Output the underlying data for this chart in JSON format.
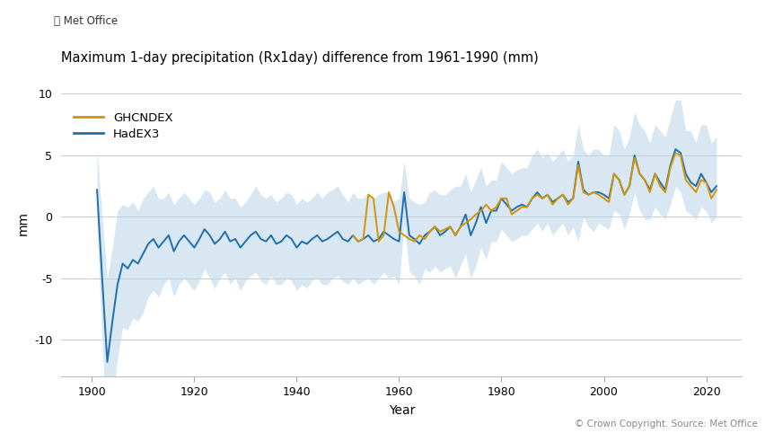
{
  "title": "Maximum 1-day precipitation (Rx1day) difference from 1961-1990 (mm)",
  "ylabel": "mm",
  "xlabel": "Year",
  "copyright": "© Crown Copyright. Source: Met Office",
  "metoffice_logo": "⦻ Met Office",
  "legend": [
    "GHCNDEX",
    "HadEX3"
  ],
  "hadex3_color": "#1f6fad",
  "ghcndex_color": "#d4940a",
  "shade_color": "#b8d4e8",
  "ylim": [
    -13,
    12
  ],
  "xlim": [
    1894,
    2027
  ],
  "yticks": [
    -10,
    -5,
    0,
    5,
    10
  ],
  "xticks": [
    1900,
    1920,
    1940,
    1960,
    1980,
    2000,
    2020
  ],
  "hadex3_years": [
    1901,
    1902,
    1903,
    1904,
    1905,
    1906,
    1907,
    1908,
    1909,
    1910,
    1911,
    1912,
    1913,
    1914,
    1915,
    1916,
    1917,
    1918,
    1919,
    1920,
    1921,
    1922,
    1923,
    1924,
    1925,
    1926,
    1927,
    1928,
    1929,
    1930,
    1931,
    1932,
    1933,
    1934,
    1935,
    1936,
    1937,
    1938,
    1939,
    1940,
    1941,
    1942,
    1943,
    1944,
    1945,
    1946,
    1947,
    1948,
    1949,
    1950,
    1951,
    1952,
    1953,
    1954,
    1955,
    1956,
    1957,
    1958,
    1959,
    1960,
    1961,
    1962,
    1963,
    1964,
    1965,
    1966,
    1967,
    1968,
    1969,
    1970,
    1971,
    1972,
    1973,
    1974,
    1975,
    1976,
    1977,
    1978,
    1979,
    1980,
    1981,
    1982,
    1983,
    1984,
    1985,
    1986,
    1987,
    1988,
    1989,
    1990,
    1991,
    1992,
    1993,
    1994,
    1995,
    1996,
    1997,
    1998,
    1999,
    2000,
    2001,
    2002,
    2003,
    2004,
    2005,
    2006,
    2007,
    2008,
    2009,
    2010,
    2011,
    2012,
    2013,
    2014,
    2015,
    2016,
    2017,
    2018,
    2019,
    2020,
    2021,
    2022
  ],
  "hadex3_values": [
    2.2,
    -5.0,
    -11.8,
    -8.5,
    -5.5,
    -3.8,
    -4.2,
    -3.5,
    -3.8,
    -3.0,
    -2.2,
    -1.8,
    -2.5,
    -2.0,
    -1.5,
    -2.8,
    -2.0,
    -1.5,
    -2.0,
    -2.5,
    -1.8,
    -1.0,
    -1.5,
    -2.2,
    -1.8,
    -1.2,
    -2.0,
    -1.8,
    -2.5,
    -2.0,
    -1.5,
    -1.2,
    -1.8,
    -2.0,
    -1.5,
    -2.2,
    -2.0,
    -1.5,
    -1.8,
    -2.5,
    -2.0,
    -2.2,
    -1.8,
    -1.5,
    -2.0,
    -1.8,
    -1.5,
    -1.2,
    -1.8,
    -2.0,
    -1.5,
    -2.0,
    -1.8,
    -1.5,
    -2.0,
    -1.8,
    -1.2,
    -1.5,
    -1.8,
    -2.0,
    2.0,
    -1.5,
    -1.8,
    -2.2,
    -1.5,
    -1.2,
    -0.8,
    -1.5,
    -1.2,
    -0.8,
    -1.5,
    -0.8,
    0.2,
    -1.5,
    -0.5,
    0.8,
    -0.5,
    0.5,
    0.5,
    1.5,
    1.0,
    0.5,
    0.8,
    1.0,
    0.8,
    1.5,
    2.0,
    1.5,
    1.8,
    1.2,
    1.5,
    1.8,
    1.2,
    1.5,
    4.5,
    2.2,
    1.8,
    2.0,
    2.0,
    1.8,
    1.5,
    3.5,
    3.0,
    1.8,
    2.5,
    5.0,
    3.5,
    3.0,
    2.2,
    3.5,
    2.8,
    2.2,
    4.2,
    5.5,
    5.2,
    3.5,
    2.8,
    2.5,
    3.5,
    2.8,
    2.0,
    2.5
  ],
  "hadex3_upper": [
    5.5,
    0.0,
    -5.0,
    -2.5,
    0.5,
    1.0,
    0.8,
    1.2,
    0.5,
    1.5,
    2.0,
    2.5,
    1.5,
    1.5,
    2.0,
    1.0,
    1.5,
    2.0,
    1.5,
    1.0,
    1.5,
    2.2,
    2.0,
    1.2,
    1.5,
    2.2,
    1.5,
    1.5,
    0.8,
    1.2,
    1.8,
    2.5,
    1.8,
    1.5,
    1.8,
    1.2,
    1.5,
    2.0,
    1.8,
    1.0,
    1.5,
    1.2,
    1.5,
    2.0,
    1.5,
    2.0,
    2.2,
    2.5,
    1.8,
    1.2,
    2.0,
    1.5,
    1.5,
    2.0,
    1.5,
    1.8,
    2.0,
    2.0,
    1.2,
    1.5,
    4.5,
    1.5,
    1.2,
    1.0,
    1.2,
    2.0,
    2.2,
    1.8,
    1.8,
    2.2,
    2.5,
    2.5,
    3.5,
    2.0,
    3.0,
    4.0,
    2.5,
    3.0,
    3.0,
    4.5,
    4.0,
    3.5,
    3.8,
    4.0,
    4.0,
    5.0,
    5.5,
    4.8,
    5.2,
    4.5,
    5.0,
    5.5,
    4.5,
    5.0,
    7.5,
    5.5,
    5.0,
    5.5,
    5.5,
    5.0,
    5.0,
    7.5,
    7.0,
    5.5,
    6.5,
    8.5,
    7.5,
    7.0,
    6.0,
    7.5,
    7.0,
    6.5,
    8.0,
    9.5,
    9.5,
    7.0,
    7.0,
    6.0,
    7.5,
    7.5,
    6.0,
    6.5
  ],
  "hadex3_lower": [
    -0.8,
    -10.0,
    -18.5,
    -15.0,
    -11.5,
    -9.0,
    -9.2,
    -8.2,
    -8.5,
    -7.8,
    -6.5,
    -6.0,
    -6.5,
    -5.5,
    -5.0,
    -6.5,
    -5.5,
    -5.0,
    -5.5,
    -6.0,
    -5.2,
    -4.2,
    -5.0,
    -5.8,
    -5.0,
    -4.5,
    -5.5,
    -5.0,
    -6.0,
    -5.2,
    -4.8,
    -4.5,
    -5.2,
    -5.5,
    -4.8,
    -5.5,
    -5.5,
    -5.0,
    -5.2,
    -6.0,
    -5.5,
    -5.8,
    -5.2,
    -5.0,
    -5.5,
    -5.5,
    -5.0,
    -4.8,
    -5.2,
    -5.5,
    -5.0,
    -5.5,
    -5.2,
    -5.0,
    -5.5,
    -5.0,
    -4.5,
    -5.0,
    -4.8,
    -5.5,
    -0.5,
    -4.5,
    -4.8,
    -5.5,
    -4.2,
    -4.5,
    -4.0,
    -4.5,
    -4.2,
    -4.0,
    -5.0,
    -4.0,
    -3.0,
    -5.0,
    -4.0,
    -2.5,
    -3.5,
    -2.0,
    -2.0,
    -1.0,
    -1.5,
    -2.0,
    -1.8,
    -1.5,
    -1.5,
    -1.0,
    -0.5,
    -1.2,
    -0.5,
    -1.5,
    -1.0,
    -0.5,
    -1.5,
    -0.8,
    -2.0,
    0.0,
    -0.8,
    -1.2,
    -0.5,
    -0.8,
    -1.0,
    0.5,
    0.2,
    -1.0,
    0.2,
    2.0,
    0.5,
    -0.2,
    -0.2,
    0.8,
    0.2,
    -0.2,
    1.0,
    2.5,
    2.0,
    0.5,
    0.2,
    -0.2,
    0.8,
    0.5,
    -0.5,
    0.0
  ],
  "ghcndex_years": [
    1951,
    1952,
    1953,
    1954,
    1955,
    1956,
    1957,
    1958,
    1959,
    1960,
    1961,
    1962,
    1963,
    1964,
    1965,
    1966,
    1967,
    1968,
    1969,
    1970,
    1971,
    1972,
    1973,
    1974,
    1975,
    1976,
    1977,
    1978,
    1979,
    1980,
    1981,
    1982,
    1983,
    1984,
    1985,
    1986,
    1987,
    1988,
    1989,
    1990,
    1991,
    1992,
    1993,
    1994,
    1995,
    1996,
    1997,
    1998,
    1999,
    2000,
    2001,
    2002,
    2003,
    2004,
    2005,
    2006,
    2007,
    2008,
    2009,
    2010,
    2011,
    2012,
    2013,
    2014,
    2015,
    2016,
    2017,
    2018,
    2019,
    2020,
    2021,
    2022
  ],
  "ghcndex_values": [
    -1.5,
    -2.0,
    -1.8,
    1.8,
    1.5,
    -2.0,
    -1.5,
    2.0,
    0.8,
    -1.2,
    -1.5,
    -1.8,
    -2.0,
    -1.5,
    -1.8,
    -1.2,
    -0.8,
    -1.2,
    -1.0,
    -0.8,
    -1.5,
    -0.8,
    -0.5,
    -0.2,
    0.2,
    0.5,
    1.0,
    0.5,
    0.8,
    1.5,
    1.5,
    0.2,
    0.5,
    0.8,
    0.8,
    1.5,
    1.8,
    1.5,
    1.8,
    1.0,
    1.5,
    1.8,
    1.0,
    1.5,
    4.2,
    2.0,
    1.8,
    2.0,
    1.8,
    1.5,
    1.2,
    3.5,
    3.0,
    1.8,
    2.5,
    4.8,
    3.5,
    3.0,
    2.0,
    3.5,
    2.5,
    2.0,
    4.0,
    5.2,
    5.0,
    3.0,
    2.5,
    2.0,
    3.0,
    2.8,
    1.5,
    2.2
  ]
}
